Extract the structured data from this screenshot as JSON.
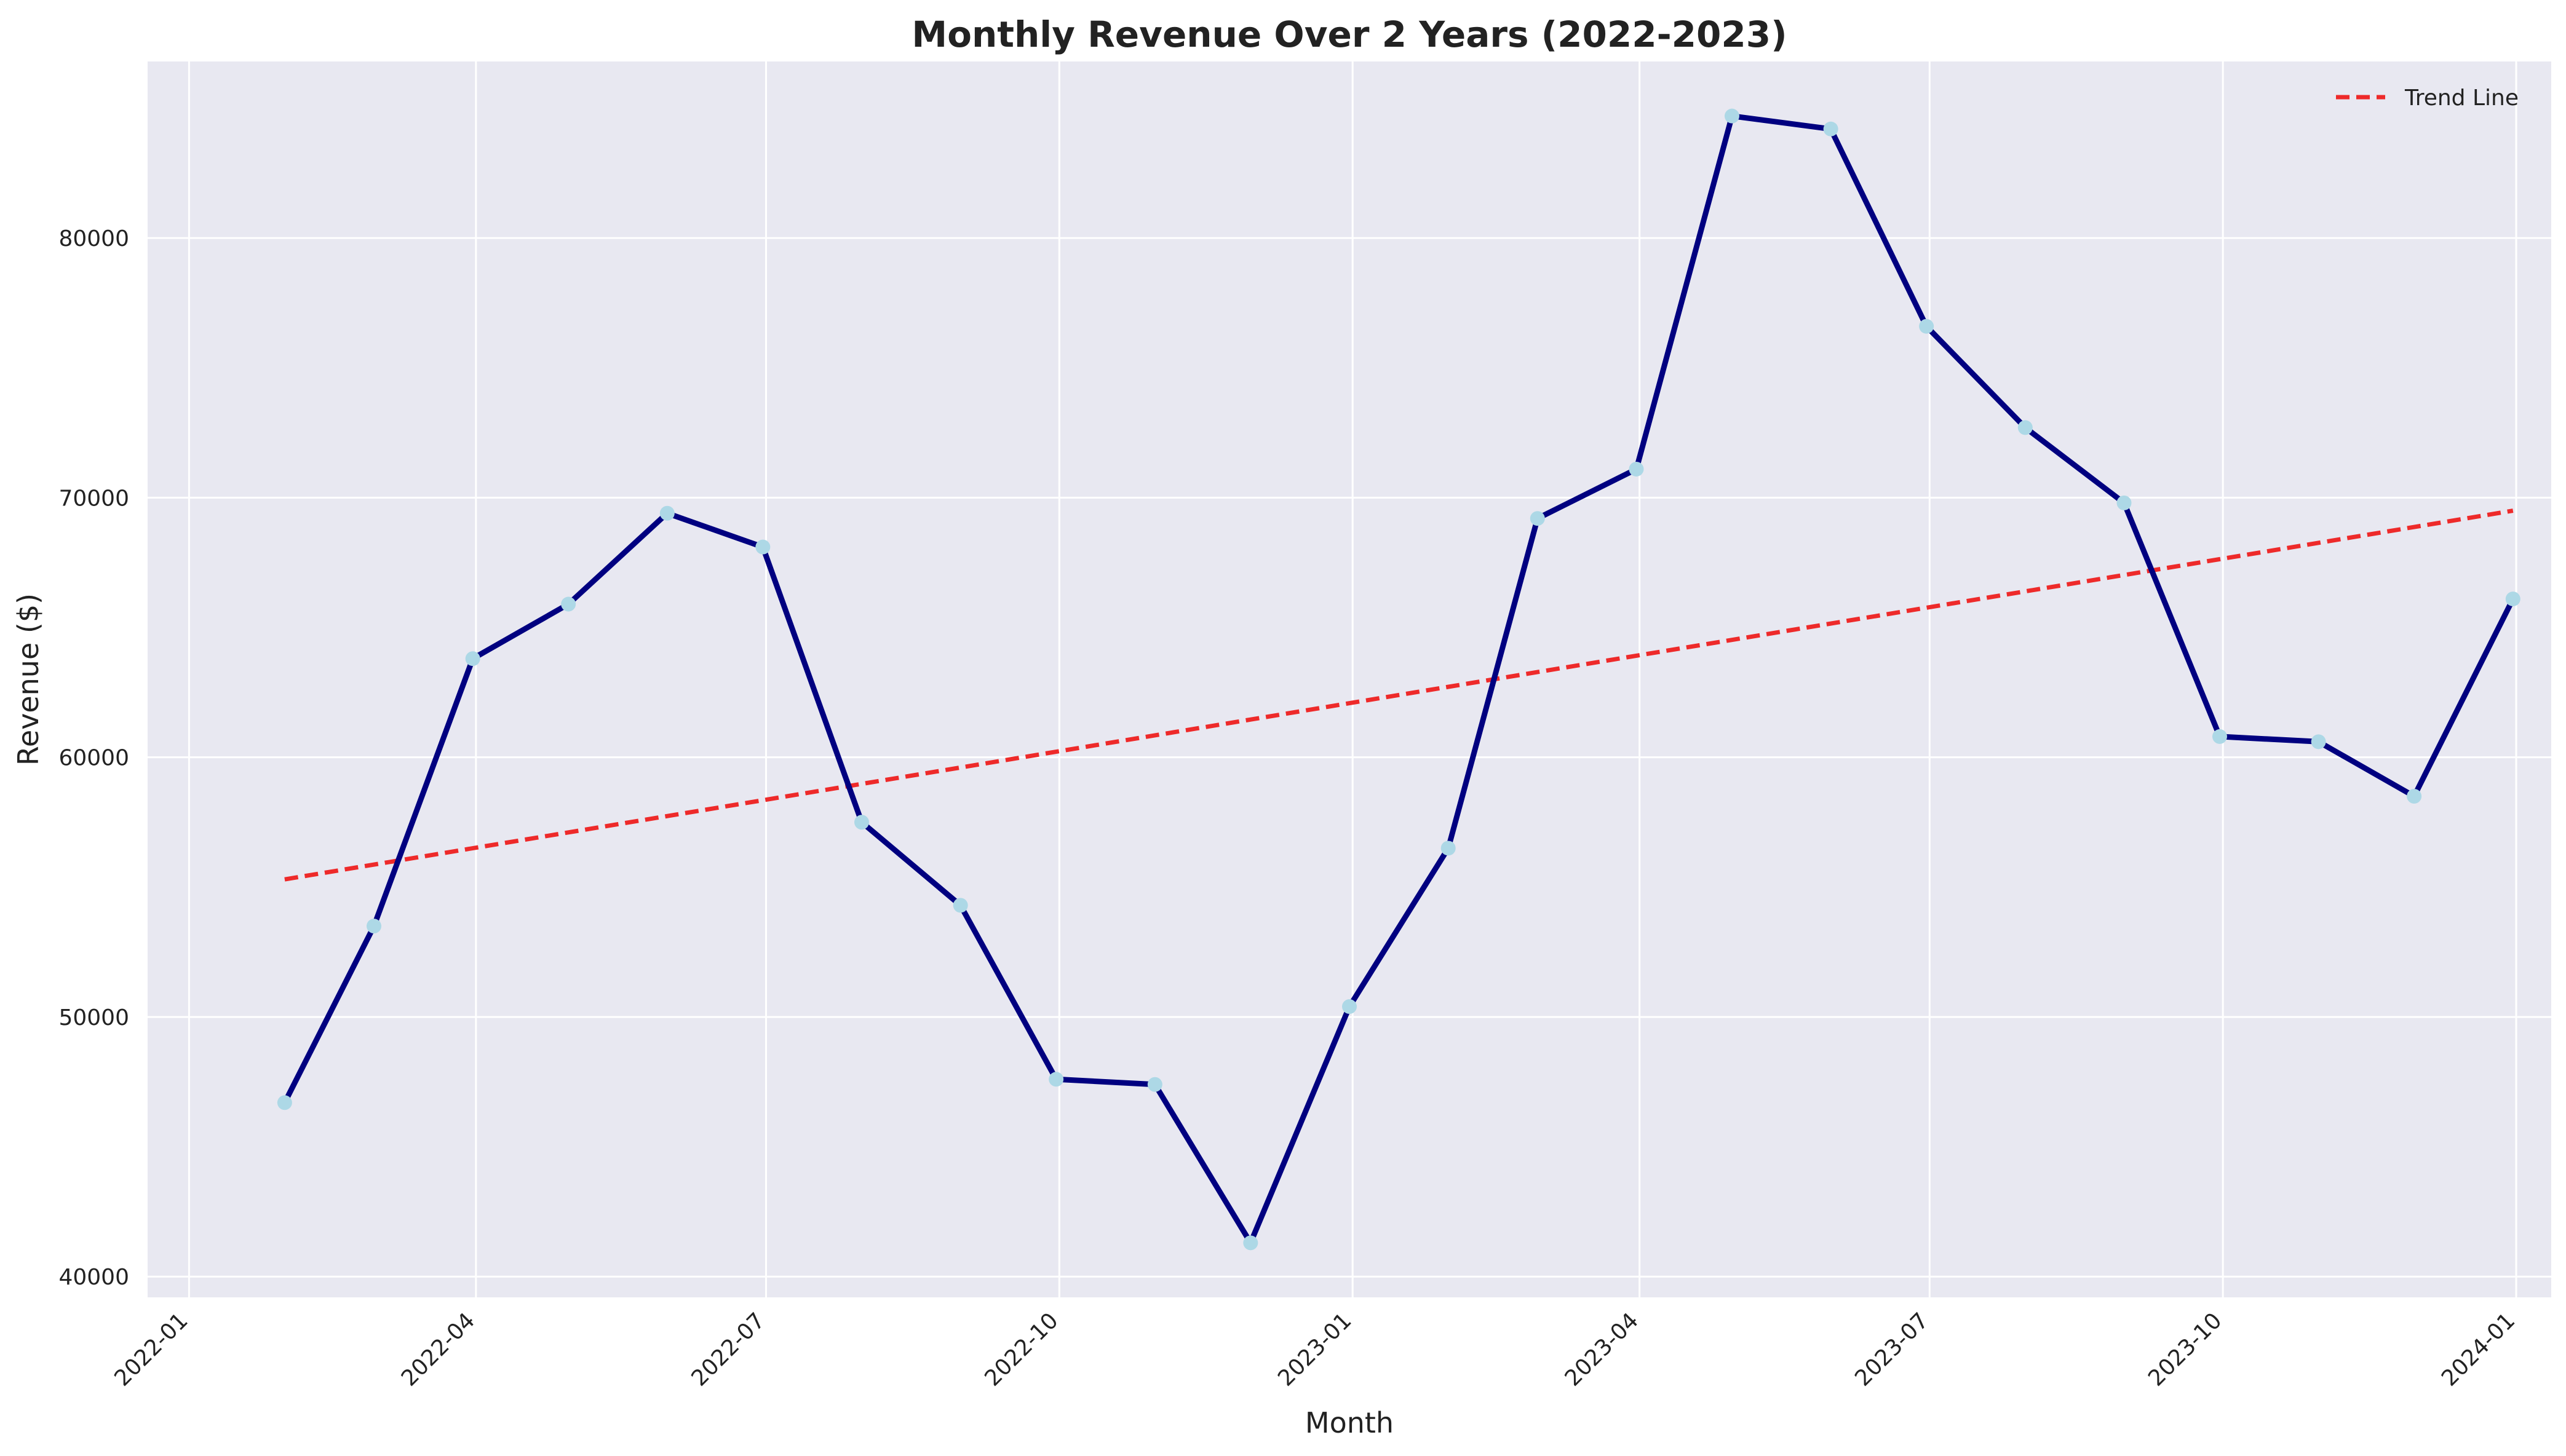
{
  "chart_data": {
    "type": "line",
    "title": "Monthly Revenue Over 2 Years (2022-2023)",
    "xlabel": "Month",
    "ylabel": "Revenue ($)",
    "x": [
      "2022-01-31",
      "2022-02-28",
      "2022-03-31",
      "2022-04-30",
      "2022-05-31",
      "2022-06-30",
      "2022-07-31",
      "2022-08-31",
      "2022-09-30",
      "2022-10-31",
      "2022-11-30",
      "2022-12-31",
      "2023-01-31",
      "2023-02-28",
      "2023-03-31",
      "2023-04-30",
      "2023-05-31",
      "2023-06-30",
      "2023-07-31",
      "2023-08-31",
      "2023-09-30",
      "2023-10-31",
      "2023-11-30",
      "2023-12-31"
    ],
    "series": [
      {
        "values": [
          46700,
          53500,
          63800,
          65900,
          69400,
          68100,
          57500,
          54300,
          47600,
          47400,
          41300,
          50400,
          56500,
          69200,
          71100,
          84700,
          84200,
          76600,
          72700,
          69800,
          60800,
          60600,
          58500,
          66100
        ],
        "color": "#000080",
        "marker_color": "#add8e6"
      }
    ],
    "trend_line": {
      "name": "Trend Line",
      "start": 55300,
      "end": 69500,
      "color": "#ee2a2a",
      "style": "dashed"
    },
    "xticks": [
      "2022-01",
      "2022-04",
      "2022-07",
      "2022-10",
      "2023-01",
      "2023-04",
      "2023-07",
      "2023-10",
      "2024-01"
    ],
    "yticks": [
      40000,
      50000,
      60000,
      70000,
      80000
    ],
    "xlim": [
      "2021-12-19",
      "2024-01-12"
    ],
    "ylim": [
      39200,
      86800
    ],
    "grid": true,
    "legend": "top-right"
  }
}
